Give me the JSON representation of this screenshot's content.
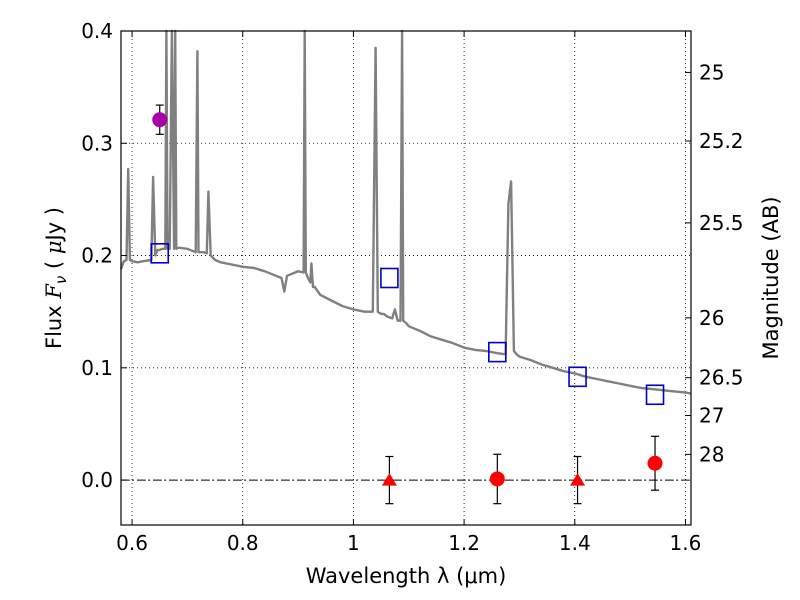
{
  "chart_data": {
    "type": "scatter",
    "xlabel": "Wavelength  λ (μm)",
    "ylabel_left": "Flux  F_ν  ( μJy )",
    "ylabel_left_parts": {
      "prefix": "Flux  ",
      "var": "F",
      "sub": "ν",
      "unit_open": "  ( ",
      "mu": "μ",
      "unit_rest": "Jy )"
    },
    "ylabel_right": "Magnitude (AB)",
    "xlim": [
      0.58,
      1.61
    ],
    "ylim": [
      -0.04,
      0.4
    ],
    "x_ticks": [
      0.6,
      0.8,
      1.0,
      1.2,
      1.4,
      1.6
    ],
    "x_tick_labels": [
      "0.6",
      "0.8",
      "1",
      "1.2",
      "1.4",
      "1.6"
    ],
    "y_ticks": [
      0.0,
      0.1,
      0.2,
      0.3,
      0.4
    ],
    "y_tick_labels": [
      "0.0",
      "0.1",
      "0.2",
      "0.3",
      "0.4"
    ],
    "right_ticks": [
      {
        "label": "25",
        "flux": 0.3631
      },
      {
        "label": "25.2",
        "flux": 0.302
      },
      {
        "label": "25.5",
        "flux": 0.2291
      },
      {
        "label": "26",
        "flux": 0.1445
      },
      {
        "label": "26.5",
        "flux": 0.0912
      },
      {
        "label": "27",
        "flux": 0.0575
      },
      {
        "label": "28",
        "flux": 0.0229
      }
    ],
    "grid": true,
    "zero_line": true,
    "colors": {
      "model": "#808080",
      "detection": "#ff0000",
      "upper_limit": "#ff0000",
      "model_box": "#0000cc",
      "optical": "#aa00aa",
      "errorbar": "#000000"
    },
    "series": [
      {
        "name": "model spectrum",
        "style": "line",
        "color": "#808080",
        "x": [
          0.58,
          0.585,
          0.59,
          0.593,
          0.596,
          0.6,
          0.61,
          0.62,
          0.635,
          0.638,
          0.642,
          0.646,
          0.65,
          0.655,
          0.66,
          0.662,
          0.664,
          0.666,
          0.668,
          0.672,
          0.676,
          0.678,
          0.68,
          0.684,
          0.7,
          0.715,
          0.718,
          0.72,
          0.723,
          0.73,
          0.735,
          0.738,
          0.742,
          0.75,
          0.76,
          0.78,
          0.8,
          0.82,
          0.84,
          0.86,
          0.87,
          0.875,
          0.88,
          0.89,
          0.9,
          0.91,
          0.912,
          0.914,
          0.918,
          0.922,
          0.924,
          0.927,
          0.93,
          0.94,
          0.96,
          0.98,
          1.0,
          1.02,
          1.035,
          1.04,
          1.044,
          1.05,
          1.055,
          1.06,
          1.07,
          1.075,
          1.08,
          1.085,
          1.088,
          1.09,
          1.095,
          1.1,
          1.12,
          1.14,
          1.16,
          1.18,
          1.2,
          1.22,
          1.24,
          1.26,
          1.275,
          1.28,
          1.285,
          1.29,
          1.295,
          1.3,
          1.32,
          1.34,
          1.36,
          1.38,
          1.4,
          1.42,
          1.44,
          1.46,
          1.48,
          1.5,
          1.52,
          1.54,
          1.56,
          1.58,
          1.6,
          1.61
        ],
        "y": [
          0.188,
          0.195,
          0.196,
          0.277,
          0.196,
          0.195,
          0.194,
          0.195,
          0.196,
          0.27,
          0.2,
          0.205,
          0.205,
          0.206,
          0.206,
          0.42,
          0.206,
          0.206,
          0.206,
          0.42,
          0.206,
          0.42,
          0.206,
          0.207,
          0.206,
          0.203,
          0.382,
          0.203,
          0.203,
          0.203,
          0.202,
          0.257,
          0.2,
          0.196,
          0.194,
          0.192,
          0.19,
          0.189,
          0.186,
          0.182,
          0.18,
          0.168,
          0.182,
          0.184,
          0.186,
          0.185,
          0.42,
          0.185,
          0.18,
          0.176,
          0.193,
          0.172,
          0.172,
          0.165,
          0.16,
          0.155,
          0.152,
          0.15,
          0.15,
          0.385,
          0.15,
          0.148,
          0.148,
          0.146,
          0.144,
          0.152,
          0.142,
          0.142,
          0.42,
          0.142,
          0.14,
          0.137,
          0.133,
          0.128,
          0.125,
          0.122,
          0.118,
          0.116,
          0.115,
          0.113,
          0.112,
          0.246,
          0.266,
          0.115,
          0.112,
          0.11,
          0.107,
          0.103,
          0.1,
          0.097,
          0.095,
          0.092,
          0.09,
          0.088,
          0.086,
          0.084,
          0.082,
          0.081,
          0.08,
          0.079,
          0.078,
          0.077
        ]
      },
      {
        "name": "model photometry",
        "style": "open-square",
        "color": "#0000cc",
        "x": [
          0.65,
          1.065,
          1.26,
          1.405,
          1.545
        ],
        "y": [
          0.202,
          0.18,
          0.114,
          0.092,
          0.076
        ]
      },
      {
        "name": "optical detection",
        "style": "filled-circle",
        "color": "#aa00aa",
        "x": [
          0.65
        ],
        "y": [
          0.321
        ],
        "err": [
          0.013
        ]
      },
      {
        "name": "NIR detections",
        "style": "filled-circle",
        "color": "#ff0000",
        "x": [
          1.26,
          1.545
        ],
        "y": [
          0.001,
          0.015
        ],
        "err": [
          0.022,
          0.024
        ]
      },
      {
        "name": "NIR upper limits",
        "style": "filled-triangle",
        "color": "#ff0000",
        "x": [
          1.065,
          1.405
        ],
        "y": [
          0.0,
          0.0
        ],
        "err": [
          0.021,
          0.021
        ]
      }
    ]
  }
}
